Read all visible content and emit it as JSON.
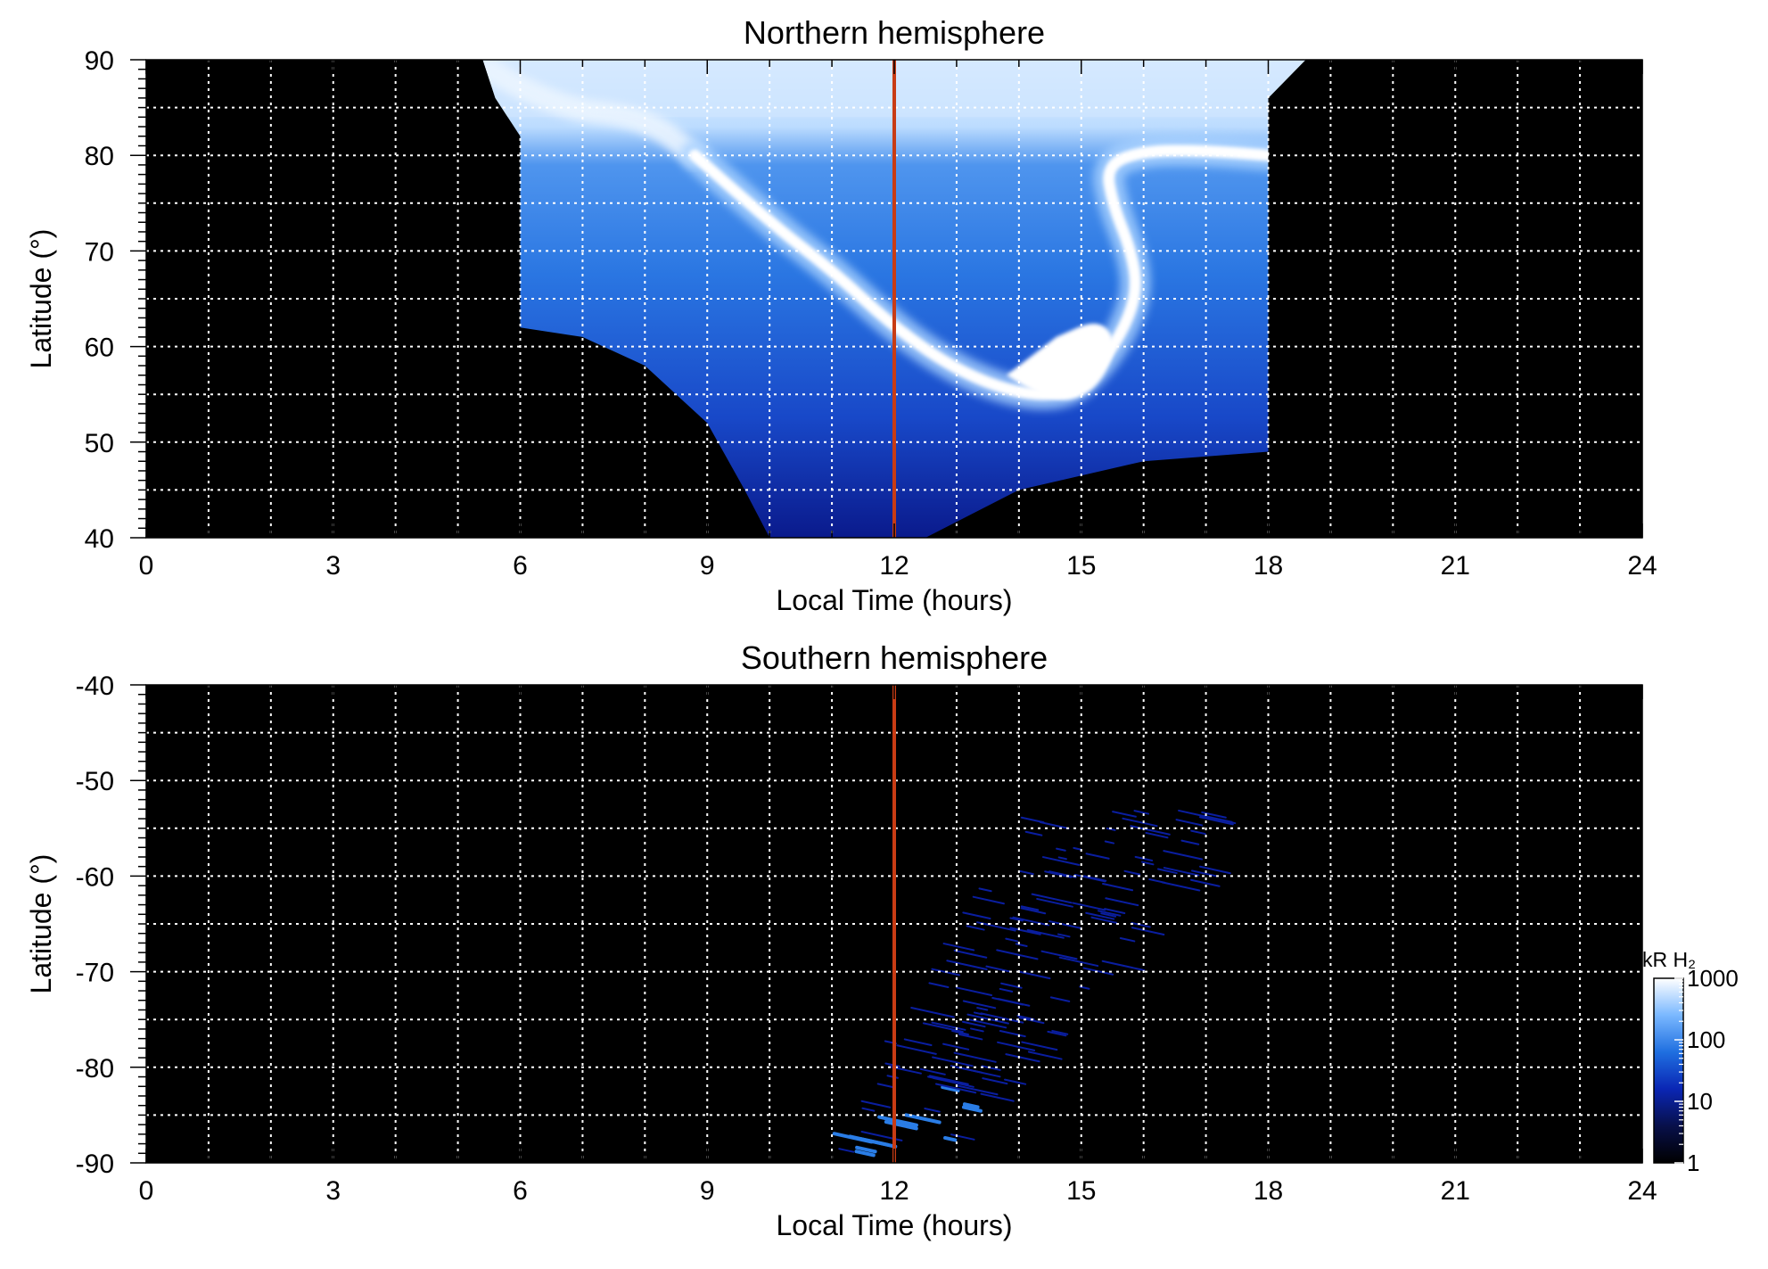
{
  "chart_data": [
    {
      "type": "heatmap",
      "title": "Northern hemisphere",
      "xlabel": "Local Time (hours)",
      "ylabel": "Latitude (°)",
      "xlim": [
        0,
        24
      ],
      "ylim": [
        40,
        90
      ],
      "xticks": [
        0,
        3,
        6,
        9,
        12,
        15,
        18,
        21,
        24
      ],
      "yticks": [
        40,
        50,
        60,
        70,
        80,
        90
      ],
      "grid": true,
      "background_color": "#000000",
      "marker_line": {
        "x": 12,
        "color": "#c83c14"
      },
      "coverage_boundary": [
        [
          5.4,
          90
        ],
        [
          5.6,
          86
        ],
        [
          6.0,
          82
        ],
        [
          6.0,
          62
        ],
        [
          7.0,
          61
        ],
        [
          8.0,
          58
        ],
        [
          9.0,
          52
        ],
        [
          9.6,
          45
        ],
        [
          10.0,
          40
        ],
        [
          12.5,
          40
        ],
        [
          14.0,
          45
        ],
        [
          16.0,
          48
        ],
        [
          18.0,
          49
        ],
        [
          18.0,
          86
        ],
        [
          18.6,
          90
        ]
      ],
      "features": {
        "polar_cap_fill": {
          "level_kR": 100,
          "color": "#1f6fe0"
        },
        "high_latitude_band": {
          "lat_min": 84,
          "lat_max": 90,
          "color": "#cfe6ff"
        },
        "main_oval_arc": [
          [
            8.8,
            80
          ],
          [
            10.0,
            73
          ],
          [
            11.0,
            68
          ],
          [
            12.0,
            62
          ],
          [
            13.0,
            57.5
          ],
          [
            14.0,
            55
          ],
          [
            14.8,
            55
          ],
          [
            15.3,
            58
          ],
          [
            15.7,
            62
          ],
          [
            15.9,
            66
          ],
          [
            15.8,
            70
          ],
          [
            15.5,
            75
          ],
          [
            15.4,
            79
          ],
          [
            16.0,
            80.5
          ],
          [
            17.0,
            80.5
          ],
          [
            18.0,
            80
          ]
        ],
        "dawn_bright_patch": [
          [
            5.5,
            89
          ],
          [
            6.5,
            85
          ],
          [
            8.0,
            84
          ],
          [
            8.8,
            80
          ]
        ],
        "dusk_bright_patch": [
          [
            13.8,
            57
          ],
          [
            14.5,
            54
          ],
          [
            15.2,
            55
          ],
          [
            15.6,
            60
          ],
          [
            15.3,
            63
          ],
          [
            14.6,
            61
          ]
        ]
      }
    },
    {
      "type": "heatmap",
      "title": "Southern hemisphere",
      "xlabel": "Local Time (hours)",
      "ylabel": "Latitude (°)",
      "xlim": [
        0,
        24
      ],
      "ylim": [
        -90,
        -40
      ],
      "xticks": [
        0,
        3,
        6,
        9,
        12,
        15,
        18,
        21,
        24
      ],
      "yticks": [
        -90,
        -80,
        -70,
        -60,
        -50,
        -40
      ],
      "grid": true,
      "background_color": "#000000",
      "marker_line": {
        "x": 12,
        "color": "#c83c14"
      },
      "sparse_streaks": {
        "lt_range": [
          10.8,
          17.8
        ],
        "lat_range": [
          -89,
          -53
        ],
        "dim_color": "#0a1ea0",
        "bright_color": "#2a7de6"
      }
    }
  ],
  "colorbar": {
    "title": "kR H₂",
    "scale": "log",
    "ticks": [
      1,
      10,
      100,
      1000
    ],
    "tick_labels": [
      "1",
      "10",
      "100",
      "1000"
    ],
    "colormap": [
      "#000000",
      "#08104a",
      "#0a26b4",
      "#1f6fe0",
      "#7ab8ff",
      "#ffffff"
    ]
  }
}
